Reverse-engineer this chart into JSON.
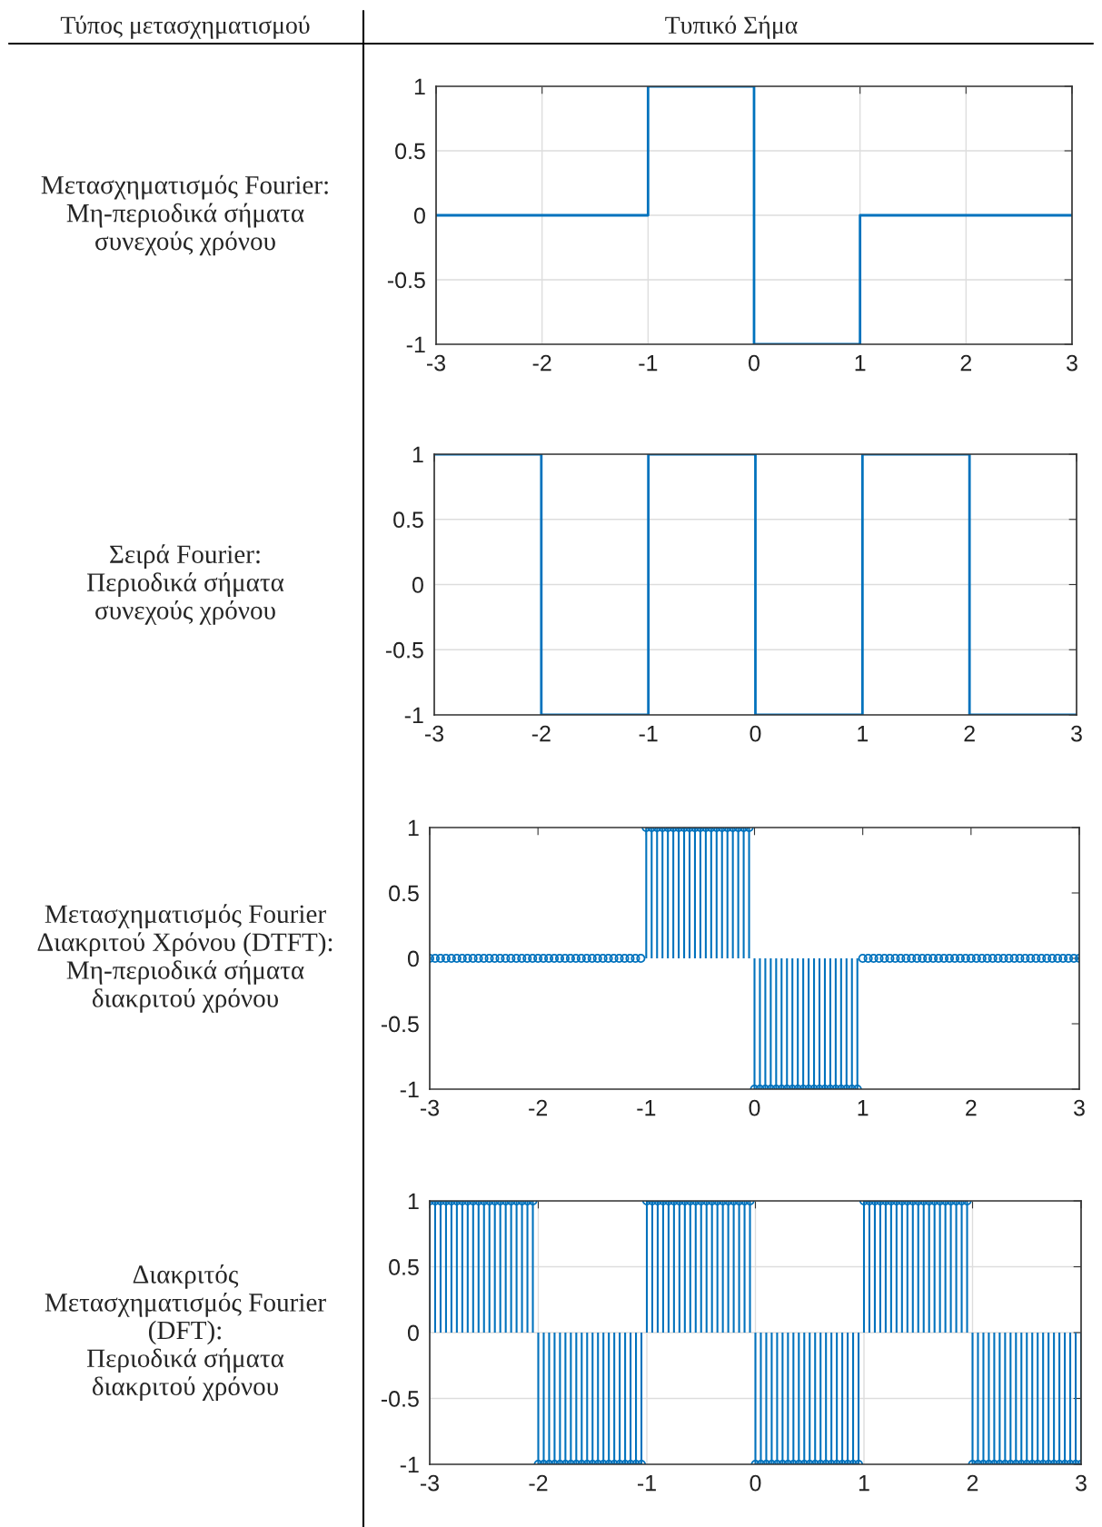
{
  "chart_data": [
    {
      "type": "line",
      "title": "Μετασχηματισμός Fourier:\nΜη-περιοδικά σήματα\nσυνεχούς χρόνου",
      "annotations": [
        "Τύπος μετασχηματισμού",
        "Τυπικό Σήμα"
      ],
      "x": [
        -3,
        -1,
        -1,
        0,
        0,
        1,
        1,
        3
      ],
      "series": [
        {
          "color": "#0072bd",
          "values": [
            0,
            0,
            1,
            1,
            -1,
            -1,
            0,
            0
          ]
        }
      ],
      "xlim": [
        -3,
        3
      ],
      "xticks": [
        -3,
        -2,
        -1,
        0,
        1,
        2,
        3
      ],
      "ylim": [
        -1,
        1
      ],
      "yticks": [
        -1,
        -0.5,
        0,
        0.5,
        1
      ],
      "grid": true,
      "marker": "none"
    },
    {
      "type": "line",
      "title": "Σειρά Fourier:\nΠεριοδικά σήματα\nσυνεχούς χρόνου",
      "x": [
        -3,
        -2,
        -2,
        -1,
        -1,
        0,
        0,
        1,
        1,
        2,
        2,
        3
      ],
      "series": [
        {
          "color": "#0072bd",
          "values": [
            1,
            1,
            -1,
            -1,
            1,
            1,
            -1,
            -1,
            1,
            1,
            -1,
            -1
          ]
        }
      ],
      "xlim": [
        -3,
        3
      ],
      "xticks": [
        -3,
        -2,
        -1,
        0,
        1,
        2,
        3
      ],
      "ylim": [
        -1,
        1
      ],
      "yticks": [
        -1,
        -0.5,
        0,
        0.5,
        1
      ],
      "grid": true,
      "marker": "none"
    },
    {
      "type": "lollipop",
      "title": "Μετασχηματισμός Fourier\nΔιακριτού Χρόνου (DTFT):\nΜη-περιοδικά σήματα\nδιακριτού χρόνου",
      "x": [
        -3,
        -2.95,
        -2.9,
        -2.85,
        -2.8,
        -2.75,
        -2.7,
        -2.65,
        -2.6,
        -2.55,
        -2.5,
        -2.45,
        -2.4,
        -2.35,
        -2.3,
        -2.25,
        -2.2,
        -2.15,
        -2.1,
        -2.05,
        -2,
        -1.95,
        -1.9,
        -1.85,
        -1.8,
        -1.75,
        -1.7,
        -1.65,
        -1.6,
        -1.55,
        -1.5,
        -1.45,
        -1.4,
        -1.35,
        -1.3,
        -1.25,
        -1.2,
        -1.15,
        -1.1,
        -1.05,
        -1,
        -0.95,
        -0.9,
        -0.85,
        -0.8,
        -0.75,
        -0.7,
        -0.65,
        -0.6,
        -0.55,
        -0.5,
        -0.45,
        -0.4,
        -0.35,
        -0.3,
        -0.25,
        -0.2,
        -0.15,
        -0.1,
        -0.05,
        0,
        0.05,
        0.1,
        0.15,
        0.2,
        0.25,
        0.3,
        0.35,
        0.4,
        0.45,
        0.5,
        0.55,
        0.6,
        0.65,
        0.7,
        0.75,
        0.8,
        0.85,
        0.9,
        0.95,
        1,
        1.05,
        1.1,
        1.15,
        1.2,
        1.25,
        1.3,
        1.35,
        1.4,
        1.45,
        1.5,
        1.55,
        1.6,
        1.65,
        1.7,
        1.75,
        1.8,
        1.85,
        1.9,
        1.95,
        2,
        2.05,
        2.1,
        2.15,
        2.2,
        2.25,
        2.3,
        2.35,
        2.4,
        2.45,
        2.5,
        2.55,
        2.6,
        2.65,
        2.7,
        2.75,
        2.8,
        2.85,
        2.9,
        2.95,
        3
      ],
      "series": [
        {
          "color": "#0072bd",
          "values": [
            0,
            0,
            0,
            0,
            0,
            0,
            0,
            0,
            0,
            0,
            0,
            0,
            0,
            0,
            0,
            0,
            0,
            0,
            0,
            0,
            0,
            0,
            0,
            0,
            0,
            0,
            0,
            0,
            0,
            0,
            0,
            0,
            0,
            0,
            0,
            0,
            0,
            0,
            0,
            0,
            1,
            1,
            1,
            1,
            1,
            1,
            1,
            1,
            1,
            1,
            1,
            1,
            1,
            1,
            1,
            1,
            1,
            1,
            1,
            1,
            -1,
            -1,
            -1,
            -1,
            -1,
            -1,
            -1,
            -1,
            -1,
            -1,
            -1,
            -1,
            -1,
            -1,
            -1,
            -1,
            -1,
            -1,
            -1,
            -1,
            0,
            0,
            0,
            0,
            0,
            0,
            0,
            0,
            0,
            0,
            0,
            0,
            0,
            0,
            0,
            0,
            0,
            0,
            0,
            0,
            0,
            0,
            0,
            0,
            0,
            0,
            0,
            0,
            0,
            0,
            0,
            0,
            0,
            0,
            0,
            0,
            0,
            0,
            0,
            0,
            0
          ]
        }
      ],
      "xlim": [
        -3,
        3
      ],
      "xticks": [
        -3,
        -2,
        -1,
        0,
        1,
        2,
        3
      ],
      "ylim": [
        -1,
        1
      ],
      "yticks": [
        -1,
        -0.5,
        0,
        0.5,
        1
      ],
      "grid": false,
      "marker": "circle"
    },
    {
      "type": "lollipop",
      "title": "Διακριτός\nΜετασχηματισμός Fourier\n(DFT):\nΠεριοδικά σήματα\nδιακριτού χρόνου",
      "x": [
        -3,
        -2.95,
        -2.9,
        -2.85,
        -2.8,
        -2.75,
        -2.7,
        -2.65,
        -2.6,
        -2.55,
        -2.5,
        -2.45,
        -2.4,
        -2.35,
        -2.3,
        -2.25,
        -2.2,
        -2.15,
        -2.1,
        -2.05,
        -2,
        -1.95,
        -1.9,
        -1.85,
        -1.8,
        -1.75,
        -1.7,
        -1.65,
        -1.6,
        -1.55,
        -1.5,
        -1.45,
        -1.4,
        -1.35,
        -1.3,
        -1.25,
        -1.2,
        -1.15,
        -1.1,
        -1.05,
        -1,
        -0.95,
        -0.9,
        -0.85,
        -0.8,
        -0.75,
        -0.7,
        -0.65,
        -0.6,
        -0.55,
        -0.5,
        -0.45,
        -0.4,
        -0.35,
        -0.3,
        -0.25,
        -0.2,
        -0.15,
        -0.1,
        -0.05,
        0,
        0.05,
        0.1,
        0.15,
        0.2,
        0.25,
        0.3,
        0.35,
        0.4,
        0.45,
        0.5,
        0.55,
        0.6,
        0.65,
        0.7,
        0.75,
        0.8,
        0.85,
        0.9,
        0.95,
        1,
        1.05,
        1.1,
        1.15,
        1.2,
        1.25,
        1.3,
        1.35,
        1.4,
        1.45,
        1.5,
        1.55,
        1.6,
        1.65,
        1.7,
        1.75,
        1.8,
        1.85,
        1.9,
        1.95,
        2,
        2.05,
        2.1,
        2.15,
        2.2,
        2.25,
        2.3,
        2.35,
        2.4,
        2.45,
        2.5,
        2.55,
        2.6,
        2.65,
        2.7,
        2.75,
        2.8,
        2.85,
        2.9,
        2.95,
        3
      ],
      "series": [
        {
          "color": "#0072bd",
          "values": [
            1,
            1,
            1,
            1,
            1,
            1,
            1,
            1,
            1,
            1,
            1,
            1,
            1,
            1,
            1,
            1,
            1,
            1,
            1,
            1,
            -1,
            -1,
            -1,
            -1,
            -1,
            -1,
            -1,
            -1,
            -1,
            -1,
            -1,
            -1,
            -1,
            -1,
            -1,
            -1,
            -1,
            -1,
            -1,
            -1,
            1,
            1,
            1,
            1,
            1,
            1,
            1,
            1,
            1,
            1,
            1,
            1,
            1,
            1,
            1,
            1,
            1,
            1,
            1,
            1,
            -1,
            -1,
            -1,
            -1,
            -1,
            -1,
            -1,
            -1,
            -1,
            -1,
            -1,
            -1,
            -1,
            -1,
            -1,
            -1,
            -1,
            -1,
            -1,
            -1,
            1,
            1,
            1,
            1,
            1,
            1,
            1,
            1,
            1,
            1,
            1,
            1,
            1,
            1,
            1,
            1,
            1,
            1,
            1,
            1,
            -1,
            -1,
            -1,
            -1,
            -1,
            -1,
            -1,
            -1,
            -1,
            -1,
            -1,
            -1,
            -1,
            -1,
            -1,
            -1,
            -1,
            -1,
            -1,
            -1,
            -1
          ]
        }
      ],
      "xlim": [
        -3,
        3
      ],
      "xticks": [
        -3,
        -2,
        -1,
        0,
        1,
        2,
        3
      ],
      "ylim": [
        -1,
        1
      ],
      "yticks": [
        -1,
        -0.5,
        0,
        0.5,
        1
      ],
      "grid": true,
      "marker": "circle"
    }
  ]
}
